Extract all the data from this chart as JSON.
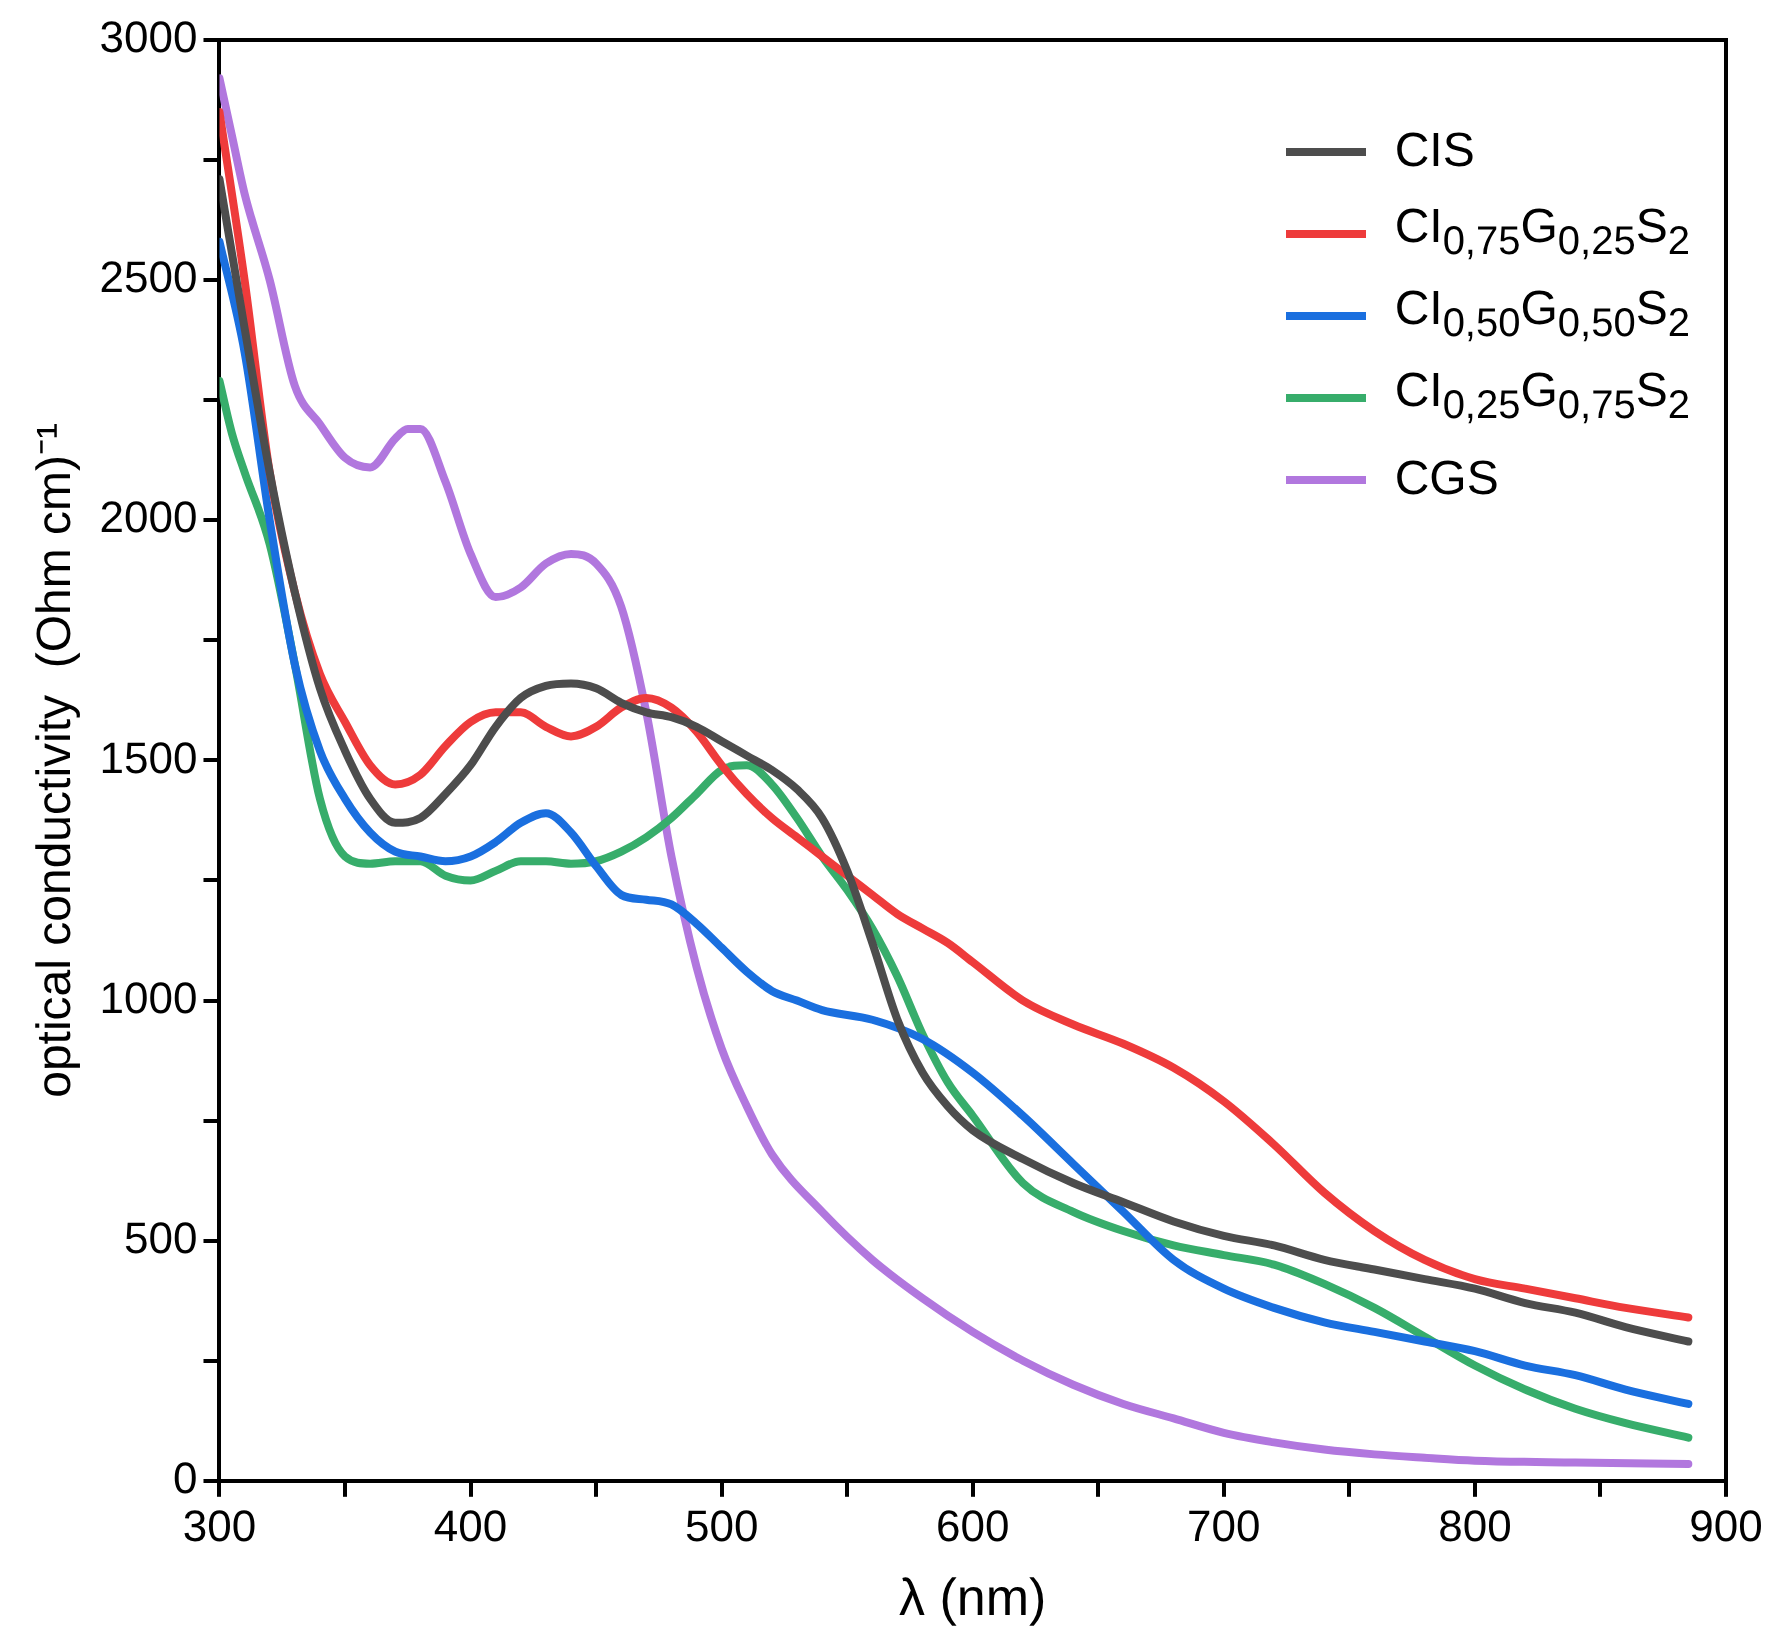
{
  "chart_data": {
    "type": "line",
    "xlabel": "λ (nm)",
    "ylabel": "optical conductivity  (Ohm cm)⁻¹",
    "xlim": [
      300,
      900
    ],
    "ylim": [
      0,
      3000
    ],
    "xticks": [
      300,
      {
        "value": 350,
        "label": null
      },
      400,
      {
        "value": 450,
        "label": null
      },
      500,
      {
        "value": 550,
        "label": null
      },
      600,
      {
        "value": 650,
        "label": null
      },
      700,
      {
        "value": 750,
        "label": null
      },
      800,
      {
        "value": 850,
        "label": null
      },
      900
    ],
    "yticks": [
      0,
      {
        "value": 250,
        "label": null
      },
      500,
      {
        "value": 750,
        "label": null
      },
      1000,
      {
        "value": 1250,
        "label": null
      },
      1500,
      {
        "value": 1750,
        "label": null
      },
      2000,
      {
        "value": 2250,
        "label": null
      },
      2500,
      {
        "value": 2750,
        "label": null
      },
      3000
    ],
    "grid": false,
    "legend": "top right",
    "marker": "none",
    "line_style": "solid",
    "series": [
      {
        "name": "CIS",
        "color": "#4d4d4d",
        "x": [
          300,
          310,
          320,
          330,
          340,
          350,
          360,
          370,
          380,
          390,
          400,
          410,
          420,
          430,
          440,
          450,
          460,
          470,
          480,
          490,
          500,
          510,
          520,
          530,
          540,
          550,
          560,
          570,
          580,
          590,
          600,
          620,
          640,
          660,
          680,
          700,
          720,
          740,
          760,
          780,
          800,
          820,
          840,
          860,
          885
        ],
        "values": [
          2710,
          2400,
          2100,
          1850,
          1650,
          1520,
          1420,
          1370,
          1380,
          1430,
          1490,
          1570,
          1630,
          1655,
          1660,
          1650,
          1620,
          1600,
          1590,
          1570,
          1540,
          1510,
          1480,
          1440,
          1380,
          1270,
          1120,
          960,
          850,
          780,
          730,
          670,
          620,
          580,
          540,
          510,
          490,
          460,
          440,
          420,
          400,
          370,
          350,
          320,
          290
        ]
      },
      {
        "name": "CI$_{0,75}$G$_{0,25}$S$_{2}$",
        "color": "#ee3b3b",
        "x": [
          300,
          310,
          320,
          330,
          340,
          350,
          360,
          370,
          380,
          390,
          400,
          410,
          420,
          430,
          440,
          450,
          460,
          470,
          480,
          490,
          500,
          510,
          520,
          530,
          540,
          550,
          560,
          570,
          580,
          590,
          600,
          620,
          640,
          660,
          680,
          700,
          720,
          740,
          760,
          780,
          800,
          820,
          840,
          860,
          885
        ],
        "values": [
          2850,
          2500,
          2100,
          1850,
          1680,
          1580,
          1490,
          1450,
          1470,
          1530,
          1580,
          1600,
          1600,
          1570,
          1550,
          1570,
          1610,
          1630,
          1610,
          1560,
          1490,
          1430,
          1380,
          1340,
          1300,
          1260,
          1220,
          1180,
          1150,
          1120,
          1080,
          1000,
          950,
          910,
          860,
          790,
          700,
          600,
          520,
          460,
          420,
          400,
          380,
          360,
          340
        ]
      },
      {
        "name": "CI$_{0,50}$G$_{0,50}$S$_{2}$",
        "color": "#1a6fdf",
        "x": [
          300,
          310,
          320,
          330,
          340,
          350,
          360,
          370,
          380,
          390,
          400,
          410,
          420,
          430,
          440,
          450,
          460,
          470,
          480,
          490,
          500,
          510,
          520,
          530,
          540,
          560,
          580,
          600,
          620,
          640,
          660,
          680,
          700,
          720,
          740,
          760,
          780,
          800,
          820,
          840,
          860,
          885
        ],
        "values": [
          2580,
          2350,
          2000,
          1700,
          1520,
          1420,
          1350,
          1310,
          1300,
          1290,
          1300,
          1330,
          1370,
          1390,
          1350,
          1280,
          1220,
          1210,
          1200,
          1160,
          1110,
          1060,
          1020,
          1000,
          980,
          960,
          920,
          850,
          760,
          660,
          560,
          460,
          400,
          360,
          330,
          310,
          290,
          270,
          240,
          220,
          190,
          160
        ]
      },
      {
        "name": "CI$_{0,25}$G$_{0,75}$S$_{2}$",
        "color": "#37ad6b",
        "x": [
          300,
          305,
          310,
          320,
          330,
          340,
          350,
          360,
          370,
          380,
          390,
          400,
          410,
          420,
          430,
          440,
          450,
          460,
          470,
          480,
          490,
          500,
          510,
          520,
          530,
          540,
          550,
          560,
          570,
          580,
          590,
          600,
          620,
          640,
          660,
          680,
          700,
          720,
          740,
          760,
          780,
          800,
          820,
          840,
          860,
          885
        ],
        "values": [
          2290,
          2180,
          2100,
          1950,
          1700,
          1420,
          1300,
          1285,
          1290,
          1290,
          1260,
          1250,
          1270,
          1290,
          1290,
          1285,
          1290,
          1310,
          1340,
          1380,
          1430,
          1480,
          1490,
          1450,
          1380,
          1300,
          1230,
          1150,
          1050,
          930,
          830,
          760,
          620,
          560,
          520,
          490,
          470,
          450,
          410,
          360,
          300,
          240,
          190,
          150,
          120,
          90
        ]
      },
      {
        "name": "CGS",
        "color": "#b177de",
        "x": [
          300,
          305,
          310,
          320,
          330,
          340,
          350,
          360,
          370,
          375,
          380,
          390,
          400,
          410,
          420,
          430,
          440,
          450,
          460,
          470,
          480,
          490,
          500,
          510,
          520,
          540,
          560,
          580,
          600,
          620,
          640,
          660,
          680,
          700,
          720,
          740,
          760,
          780,
          800,
          840,
          885
        ],
        "values": [
          2920,
          2800,
          2680,
          2500,
          2280,
          2200,
          2130,
          2110,
          2170,
          2190,
          2190,
          2080,
          1930,
          1840,
          1860,
          1910,
          1930,
          1910,
          1820,
          1600,
          1300,
          1070,
          900,
          780,
          680,
          560,
          460,
          380,
          310,
          250,
          200,
          160,
          130,
          100,
          80,
          65,
          55,
          48,
          42,
          38,
          35
        ]
      }
    ]
  }
}
